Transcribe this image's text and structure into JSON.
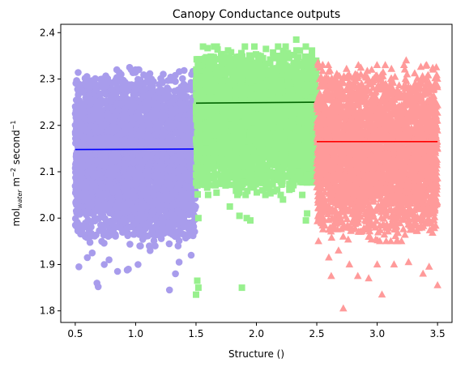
{
  "chart_data": {
    "type": "scatter",
    "title": "Canopy Conductance outputs",
    "xlabel": "Structure ()",
    "ylabel": {
      "prefix": "mol",
      "subscript": "water",
      "middle": " m",
      "sup1": "−2",
      "suffix": " second",
      "sup2": "−1"
    },
    "xlim": [
      0.38,
      3.62
    ],
    "ylim": [
      1.775,
      2.418
    ],
    "xticks": [
      0.5,
      1.0,
      1.5,
      2.0,
      2.5,
      3.0,
      3.5
    ],
    "xtick_labels": [
      "0.5",
      "1.0",
      "1.5",
      "2.0",
      "2.5",
      "3.0",
      "3.5"
    ],
    "yticks": [
      1.8,
      1.9,
      2.0,
      2.1,
      2.2,
      2.3,
      2.4
    ],
    "ytick_labels": [
      "1.8",
      "1.9",
      "2.0",
      "2.1",
      "2.2",
      "2.3",
      "2.4"
    ],
    "series": [
      {
        "marker": "circle",
        "color": "#a89cec",
        "line_color": "#0000ff",
        "x_range": [
          0.5,
          1.5
        ],
        "band": [
          1.96,
          2.3
        ],
        "mean_line": [
          [
            0.5,
            2.148
          ],
          [
            1.5,
            2.149
          ]
        ],
        "outliers": [
          [
            0.95,
            2.325
          ],
          [
            0.88,
            2.31
          ],
          [
            0.53,
            1.895
          ],
          [
            0.68,
            1.86
          ],
          [
            0.69,
            1.852
          ],
          [
            0.85,
            1.885
          ],
          [
            0.93,
            1.888
          ],
          [
            0.94,
            1.89
          ],
          [
            1.28,
            1.845
          ],
          [
            1.33,
            1.88
          ],
          [
            1.46,
            1.92
          ],
          [
            1.02,
            1.9
          ],
          [
            0.78,
            1.91
          ],
          [
            0.6,
            1.915
          ],
          [
            1.12,
            1.93
          ],
          [
            1.36,
            1.905
          ],
          [
            0.74,
            1.9
          ],
          [
            0.64,
            1.925
          ]
        ]
      },
      {
        "marker": "square",
        "color": "#98f08e",
        "line_color": "#006400",
        "x_range": [
          1.5,
          2.5
        ],
        "band": [
          2.07,
          2.35
        ],
        "mean_line": [
          [
            1.5,
            2.248
          ],
          [
            2.5,
            2.25
          ]
        ],
        "outliers": [
          [
            2.33,
            2.385
          ],
          [
            2.18,
            2.37
          ],
          [
            1.52,
            2.0
          ],
          [
            1.51,
            1.865
          ],
          [
            1.52,
            1.85
          ],
          [
            1.5,
            1.835
          ],
          [
            1.78,
            2.025
          ],
          [
            1.86,
            2.005
          ],
          [
            1.95,
            1.995
          ],
          [
            1.88,
            1.85
          ],
          [
            1.67,
            2.055
          ],
          [
            2.05,
            2.06
          ],
          [
            2.22,
            2.04
          ],
          [
            2.42,
            2.01
          ],
          [
            2.41,
            1.995
          ],
          [
            1.6,
            2.05
          ],
          [
            1.92,
            2.0
          ],
          [
            2.38,
            2.05
          ]
        ]
      },
      {
        "marker": "triangle",
        "color": "#ff9a9a",
        "line_color": "#ff0000",
        "x_range": [
          2.5,
          3.5
        ],
        "band": [
          1.97,
          2.31
        ],
        "mean_line": [
          [
            2.5,
            2.165
          ],
          [
            3.5,
            2.165
          ]
        ],
        "outliers": [
          [
            3.24,
            2.34
          ],
          [
            2.51,
            2.335
          ],
          [
            2.55,
            2.33
          ],
          [
            3.49,
            2.325
          ],
          [
            2.72,
            1.805
          ],
          [
            3.04,
            1.835
          ],
          [
            2.84,
            1.875
          ],
          [
            2.93,
            1.87
          ],
          [
            3.14,
            1.9
          ],
          [
            3.38,
            1.88
          ],
          [
            3.5,
            1.855
          ],
          [
            2.6,
            1.915
          ],
          [
            2.62,
            1.875
          ],
          [
            2.77,
            1.9
          ],
          [
            3.0,
            1.9
          ],
          [
            3.26,
            1.905
          ],
          [
            3.43,
            1.895
          ],
          [
            2.68,
            1.93
          ]
        ]
      }
    ]
  }
}
